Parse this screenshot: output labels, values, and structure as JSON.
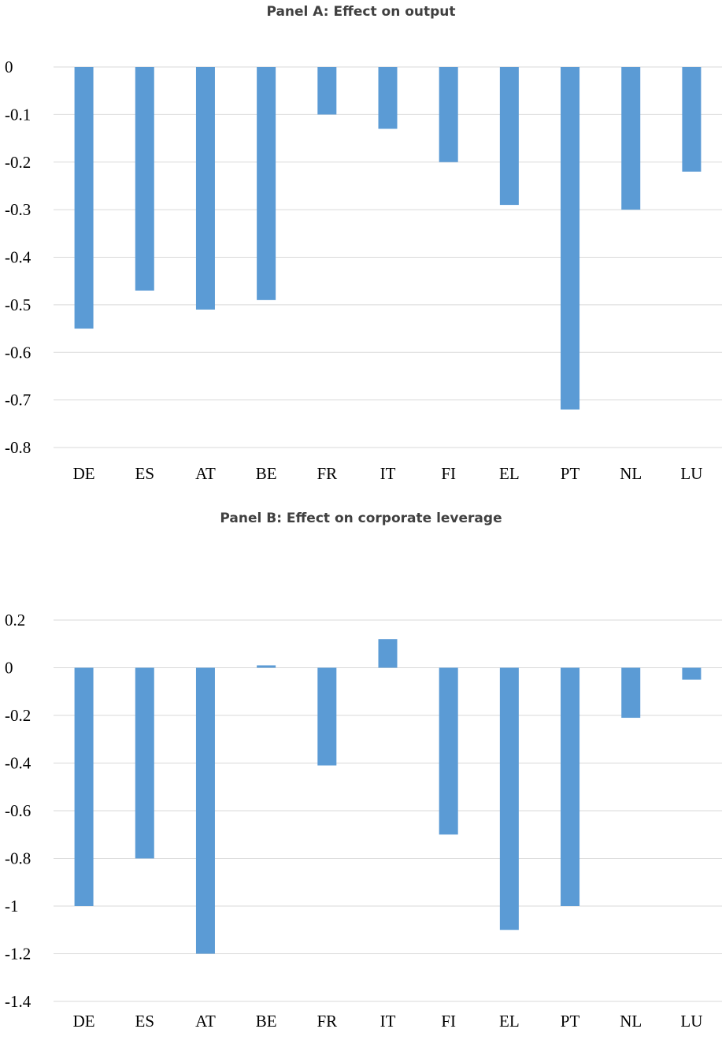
{
  "chart_data": [
    {
      "type": "bar",
      "title": "Panel A: Effect on output",
      "categories": [
        "DE",
        "ES",
        "AT",
        "BE",
        "FR",
        "IT",
        "FI",
        "EL",
        "PT",
        "NL",
        "LU"
      ],
      "values": [
        -0.55,
        -0.47,
        -0.51,
        -0.49,
        -0.1,
        -0.13,
        -0.2,
        -0.29,
        -0.72,
        -0.3,
        -0.22
      ],
      "ylim": [
        -0.8,
        0
      ],
      "yticks": [
        "0",
        "-0.1",
        "-0.2",
        "-0.3",
        "-0.4",
        "-0.5",
        "-0.6",
        "-0.7",
        "-0.8"
      ],
      "ytick_values": [
        0,
        -0.1,
        -0.2,
        -0.3,
        -0.4,
        -0.5,
        -0.6,
        -0.7,
        -0.8
      ],
      "grid": true,
      "color": "#5b9bd5"
    },
    {
      "type": "bar",
      "title": "Panel B: Effect on corporate leverage",
      "categories": [
        "DE",
        "ES",
        "AT",
        "BE",
        "FR",
        "IT",
        "FI",
        "EL",
        "PT",
        "NL",
        "LU"
      ],
      "values": [
        -1.0,
        -0.8,
        -1.2,
        0.01,
        -0.41,
        0.12,
        -0.7,
        -1.1,
        -1.0,
        -0.21,
        -0.05
      ],
      "ylim": [
        -1.4,
        0.2
      ],
      "yticks": [
        "0.2",
        "0",
        "-0.2",
        "-0.4",
        "-0.6",
        "-0.8",
        "-1",
        "-1.2",
        "-1.4"
      ],
      "ytick_values": [
        0.2,
        0,
        -0.2,
        -0.4,
        -0.6,
        -0.8,
        -1,
        -1.2,
        -1.4
      ],
      "grid": true,
      "color": "#5b9bd5"
    }
  ]
}
